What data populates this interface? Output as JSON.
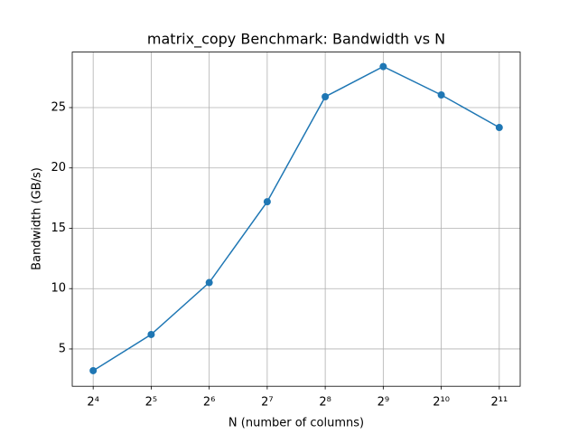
{
  "chart_data": {
    "type": "line",
    "title": "matrix_copy Benchmark: Bandwidth vs N",
    "x_label": "N (number of columns)",
    "y_label": "Bandwidth (GB/s)",
    "x": [
      16,
      32,
      64,
      128,
      256,
      512,
      1024,
      2048
    ],
    "series": [
      {
        "color": "#1f77b4",
        "values": [
          3.2,
          6.2,
          10.5,
          17.2,
          25.9,
          28.4,
          26.05,
          23.35
        ]
      }
    ],
    "x_scale": "log2",
    "xlim": [
      12.46,
      2630
    ],
    "xticks": [
      {
        "value": 16,
        "label": "2⁴"
      },
      {
        "value": 32,
        "label": "2⁵"
      },
      {
        "value": 64,
        "label": "2⁶"
      },
      {
        "value": 128,
        "label": "2⁷"
      },
      {
        "value": 256,
        "label": "2⁸"
      },
      {
        "value": 512,
        "label": "2⁹"
      },
      {
        "value": 1024,
        "label": "2¹⁰"
      },
      {
        "value": 2048,
        "label": "2¹¹"
      }
    ],
    "ylim": [
      1.91,
      29.6
    ],
    "yticks": [
      5,
      10,
      15,
      20,
      25
    ],
    "grid": true
  }
}
